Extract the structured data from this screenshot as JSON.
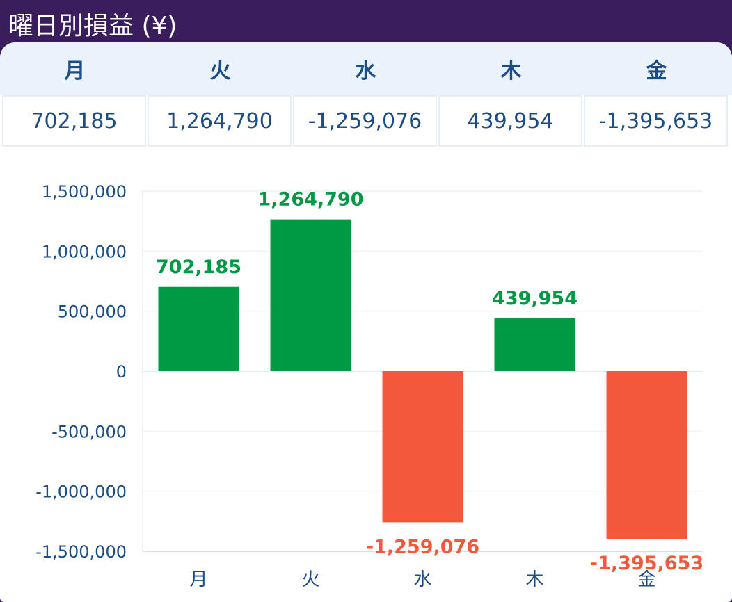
{
  "title": "曜日別損益 (¥)",
  "table": {
    "headers": [
      "月",
      "火",
      "水",
      "木",
      "金"
    ],
    "values": [
      "702,185",
      "1,264,790",
      "-1,259,076",
      "439,954",
      "-1,395,653"
    ]
  },
  "colors": {
    "positive": "#009a44",
    "negative": "#f4583b",
    "header_bg": "#eaf3fb",
    "frame": "#3a1d5c"
  },
  "chart_data": {
    "type": "bar",
    "categories": [
      "月",
      "火",
      "水",
      "木",
      "金"
    ],
    "values": [
      702185,
      1264790,
      -1259076,
      439954,
      -1395653
    ],
    "data_labels": [
      "702,185",
      "1,264,790",
      "-1,259,076",
      "439,954",
      "-1,395,653"
    ],
    "ylim": [
      -1500000,
      1500000
    ],
    "yticks": [
      1500000,
      1000000,
      500000,
      0,
      -500000,
      -1000000,
      -1500000
    ],
    "ytick_labels": [
      "1,500,000",
      "1,000,000",
      "500,000",
      "0",
      "-500,000",
      "-1,000,000",
      "-1,500,000"
    ],
    "grid": true,
    "legend": "none"
  }
}
